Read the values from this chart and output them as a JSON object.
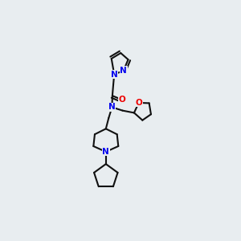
{
  "bg_color": "#e8edf0",
  "bond_color": "#111111",
  "N_color": "#0000ee",
  "O_color": "#ee0000",
  "bond_width": 1.5,
  "dbo": 0.012,
  "figsize": [
    3.0,
    3.0
  ],
  "dpi": 100,
  "font_size": 7.5,
  "xlim": [
    0,
    1
  ],
  "ylim": [
    0,
    1
  ]
}
